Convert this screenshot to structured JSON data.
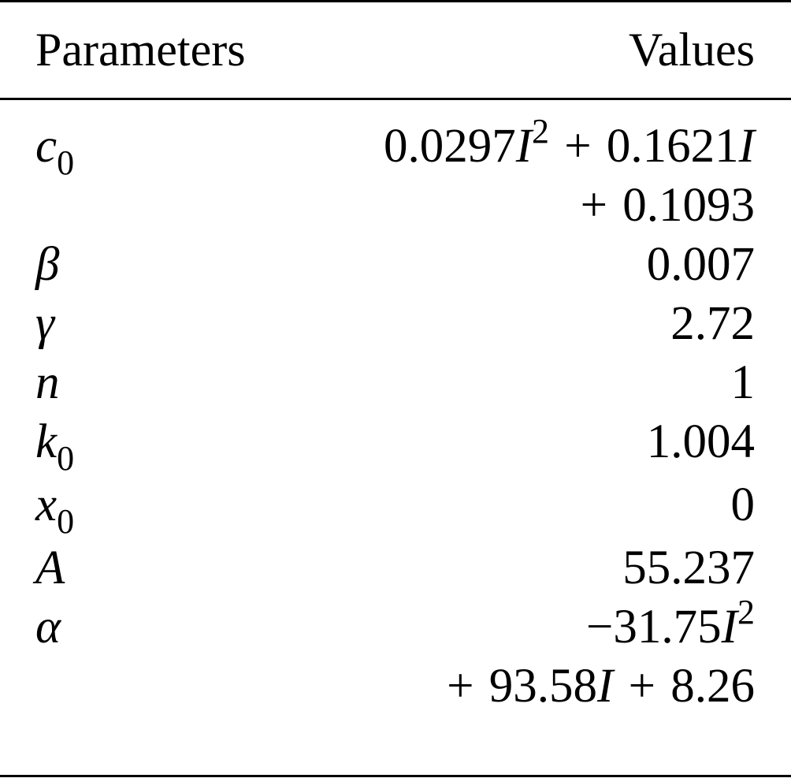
{
  "header": {
    "col1": "Parameters",
    "col2": "Values"
  },
  "rows": [
    {
      "name": "c0",
      "param": [
        {
          "t": "c",
          "it": true
        },
        {
          "t": "0",
          "sub": true
        }
      ],
      "lines": [
        [
          {
            "t": "0.0297"
          },
          {
            "t": "I",
            "it": true
          },
          {
            "t": "2",
            "sup": true
          },
          {
            "t": " + ",
            "op": true
          },
          {
            "t": "0.1621"
          },
          {
            "t": "I",
            "it": true
          }
        ],
        [
          {
            "t": "+ ",
            "op": true
          },
          {
            "t": "0.1093"
          }
        ]
      ]
    },
    {
      "name": "beta",
      "param": [
        {
          "t": "β",
          "it": true
        }
      ],
      "lines": [
        [
          {
            "t": "0.007"
          }
        ]
      ]
    },
    {
      "name": "gamma",
      "param": [
        {
          "t": "γ",
          "it": true
        }
      ],
      "lines": [
        [
          {
            "t": "2.72"
          }
        ]
      ]
    },
    {
      "name": "n",
      "param": [
        {
          "t": "n",
          "it": true
        }
      ],
      "lines": [
        [
          {
            "t": "1"
          }
        ]
      ]
    },
    {
      "name": "k0",
      "param": [
        {
          "t": "k",
          "it": true
        },
        {
          "t": "0",
          "sub": true
        }
      ],
      "lines": [
        [
          {
            "t": "1.004"
          }
        ]
      ]
    },
    {
      "name": "x0",
      "param": [
        {
          "t": "x",
          "it": true
        },
        {
          "t": "0",
          "sub": true
        }
      ],
      "lines": [
        [
          {
            "t": "0"
          }
        ]
      ]
    },
    {
      "name": "A",
      "param": [
        {
          "t": "A",
          "it": true
        }
      ],
      "lines": [
        [
          {
            "t": "55.237"
          }
        ]
      ]
    },
    {
      "name": "alpha",
      "param": [
        {
          "t": "α",
          "it": true
        }
      ],
      "lines": [
        [
          {
            "t": "−31.75"
          },
          {
            "t": "I",
            "it": true
          },
          {
            "t": "2",
            "sup": true
          }
        ],
        [
          {
            "t": "+ ",
            "op": true
          },
          {
            "t": "93.58"
          },
          {
            "t": "I",
            "it": true
          },
          {
            "t": " + ",
            "op": true
          },
          {
            "t": "8.26"
          }
        ]
      ]
    }
  ]
}
